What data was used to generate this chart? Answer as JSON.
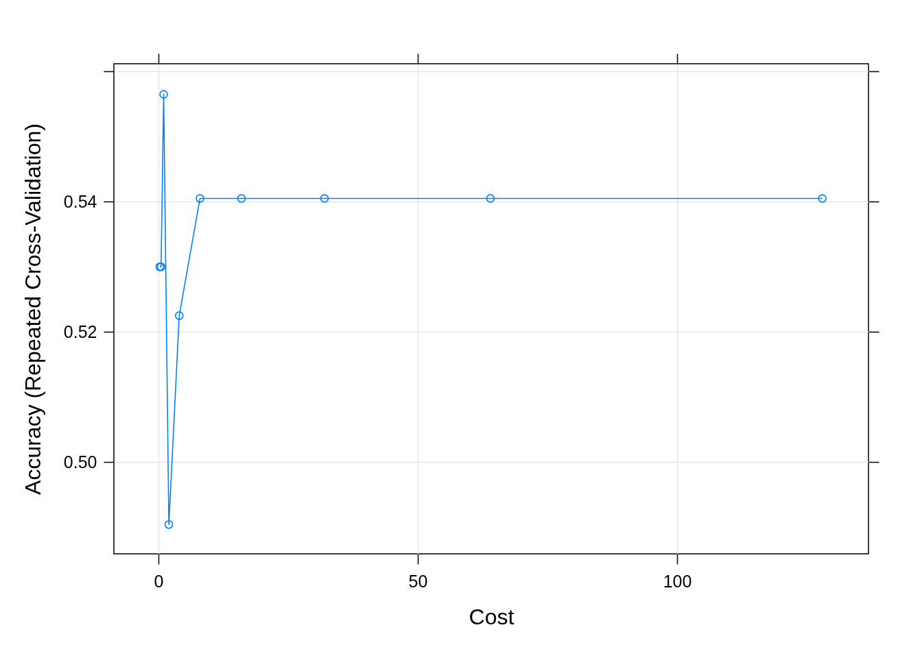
{
  "chart_data": {
    "type": "line",
    "xlabel": "Cost",
    "ylabel": "Accuracy (Repeated Cross-Validation)",
    "x": [
      0.25,
      0.5,
      1,
      2,
      4,
      8,
      16,
      32,
      64,
      128
    ],
    "series": [
      {
        "color": "#0080ff",
        "values": [
          0.53,
          0.53,
          0.5565,
          0.4904,
          0.5225,
          0.5405,
          0.5405,
          0.5405,
          0.5405,
          0.5405
        ]
      }
    ],
    "xlim": [
      -8.6,
      136.9
    ],
    "ylim": [
      0.4859,
      0.5612
    ],
    "xticks": [
      0,
      50,
      100
    ],
    "yticks": [
      {
        "value": 0.5,
        "label": "0.50"
      },
      {
        "value": 0.52,
        "label": "0.52"
      },
      {
        "value": 0.54,
        "label": "0.54"
      },
      {
        "value": 0.56,
        "label": null
      }
    ],
    "grid": true,
    "marker": "circle",
    "line_style": "solid"
  }
}
